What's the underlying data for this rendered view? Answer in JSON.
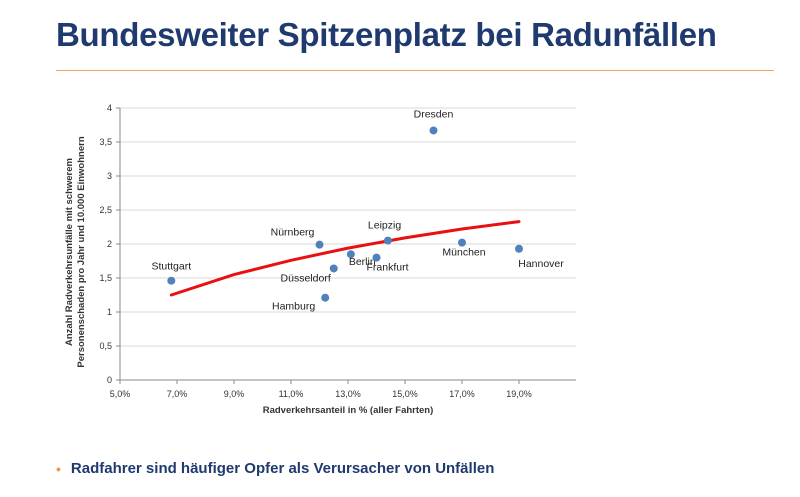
{
  "slide": {
    "title": "Bundesweiter Spitzenplatz bei Radunfällen",
    "bullet": "Radfahrer sind häufiger Opfer als Verursacher von Unfällen",
    "accent_color": "#e8a46a",
    "title_color": "#1f3a6e"
  },
  "chart_data": {
    "type": "scatter",
    "xlabel": "Radverkehrsanteil in % (aller Fahrten)",
    "ylabel_lines": [
      "Anzahl Radverkehrsunfälle mit schwerem",
      "Personenschaden pro Jahr und 10.000 Einwohnern"
    ],
    "xlim": [
      5.0,
      21.0
    ],
    "ylim": [
      0,
      4
    ],
    "x_ticks": [
      "5,0%",
      "7,0%",
      "9,0%",
      "11,0%",
      "13,0%",
      "15,0%",
      "17,0%",
      "19,0%"
    ],
    "y_ticks": [
      "0",
      "0,5",
      "1",
      "1,5",
      "2",
      "2,5",
      "3",
      "3,5",
      "4"
    ],
    "grid": true,
    "point_color": "#4f81bd",
    "trend_color": "#e81010",
    "points": [
      {
        "label": "Stuttgart",
        "x": 6.8,
        "y": 1.46
      },
      {
        "label": "Nürnberg",
        "x": 12.0,
        "y": 1.99
      },
      {
        "label": "Düsseldorf",
        "x": 12.5,
        "y": 1.64
      },
      {
        "label": "Berlin",
        "x": 13.1,
        "y": 1.85
      },
      {
        "label": "Hamburg",
        "x": 12.2,
        "y": 1.21
      },
      {
        "label": "Leipzig",
        "x": 14.4,
        "y": 2.05
      },
      {
        "label": "Frankfurt",
        "x": 14.0,
        "y": 1.8
      },
      {
        "label": "Dresden",
        "x": 16.0,
        "y": 3.67
      },
      {
        "label": "München",
        "x": 17.0,
        "y": 2.02
      },
      {
        "label": "Hannover",
        "x": 19.0,
        "y": 1.93
      }
    ],
    "trendline": [
      {
        "x": 6.8,
        "y": 1.25
      },
      {
        "x": 9.0,
        "y": 1.55
      },
      {
        "x": 11.0,
        "y": 1.76
      },
      {
        "x": 13.0,
        "y": 1.94
      },
      {
        "x": 15.0,
        "y": 2.09
      },
      {
        "x": 17.0,
        "y": 2.22
      },
      {
        "x": 19.0,
        "y": 2.33
      }
    ]
  }
}
